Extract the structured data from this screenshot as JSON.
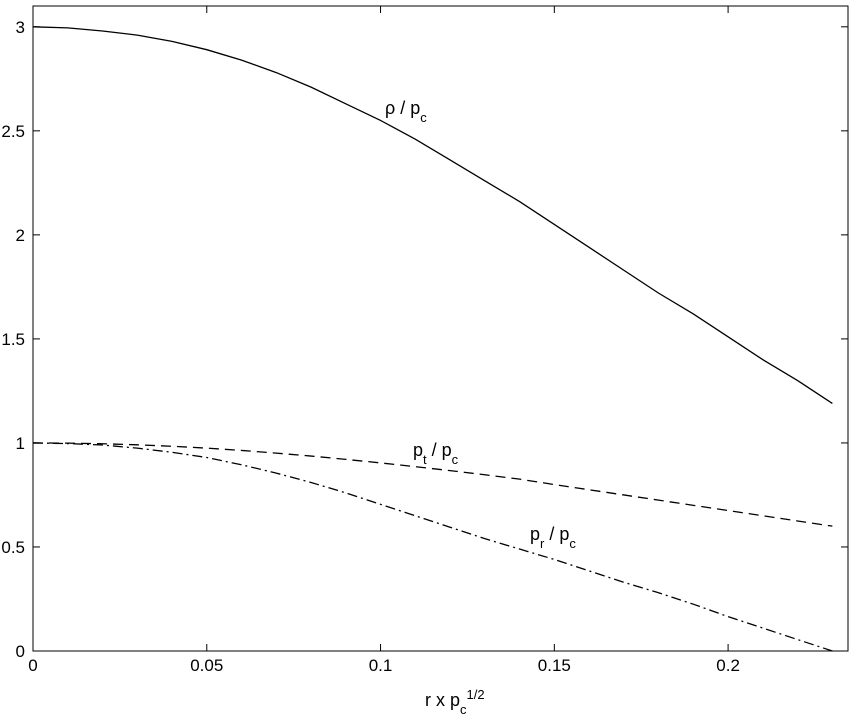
{
  "chart_data": {
    "type": "line",
    "x": [
      0,
      0.01,
      0.02,
      0.03,
      0.04,
      0.05,
      0.06,
      0.07,
      0.08,
      0.09,
      0.1,
      0.11,
      0.12,
      0.13,
      0.14,
      0.15,
      0.16,
      0.17,
      0.18,
      0.19,
      0.2,
      0.21,
      0.22,
      0.23
    ],
    "xlim": [
      0,
      0.2345
    ],
    "xticks": [
      0,
      0.05,
      0.1,
      0.15,
      0.2
    ],
    "ylim": [
      0,
      3.1
    ],
    "yticks": [
      0,
      0.5,
      1,
      1.5,
      2,
      2.5,
      3
    ],
    "x_label": [
      {
        "text": "r x p"
      },
      {
        "text": "c",
        "shift": "sub"
      },
      {
        "text": "1/2",
        "shift": "super"
      }
    ],
    "series": [
      {
        "name": [
          {
            "text": "ρ / p"
          },
          {
            "text": "c",
            "shift": "sub"
          }
        ],
        "color": "#000000",
        "dash": "solid",
        "values": [
          3.0,
          2.995,
          2.98,
          2.96,
          2.93,
          2.89,
          2.84,
          2.78,
          2.71,
          2.63,
          2.55,
          2.46,
          2.36,
          2.26,
          2.16,
          2.05,
          1.94,
          1.83,
          1.72,
          1.62,
          1.51,
          1.4,
          1.3,
          1.19
        ]
      },
      {
        "name": [
          {
            "text": "p"
          },
          {
            "text": "t",
            "shift": "sub"
          },
          {
            "text": " / p"
          },
          {
            "text": "c",
            "shift": "sub"
          }
        ],
        "color": "#000000",
        "dash": "dashed",
        "values": [
          1.0,
          0.999,
          0.996,
          0.991,
          0.984,
          0.975,
          0.964,
          0.951,
          0.937,
          0.921,
          0.904,
          0.886,
          0.867,
          0.847,
          0.826,
          0.8,
          0.775,
          0.75,
          0.725,
          0.7,
          0.675,
          0.65,
          0.625,
          0.6
        ]
      },
      {
        "name": [
          {
            "text": "p"
          },
          {
            "text": "r",
            "shift": "sub"
          },
          {
            "text": " / p"
          },
          {
            "text": "c",
            "shift": "sub"
          }
        ],
        "color": "#000000",
        "dash": "dashdot",
        "values": [
          1.0,
          0.997,
          0.99,
          0.975,
          0.955,
          0.93,
          0.895,
          0.855,
          0.81,
          0.76,
          0.705,
          0.65,
          0.595,
          0.54,
          0.49,
          0.44,
          0.385,
          0.33,
          0.28,
          0.225,
          0.165,
          0.11,
          0.055,
          0
        ]
      }
    ]
  }
}
